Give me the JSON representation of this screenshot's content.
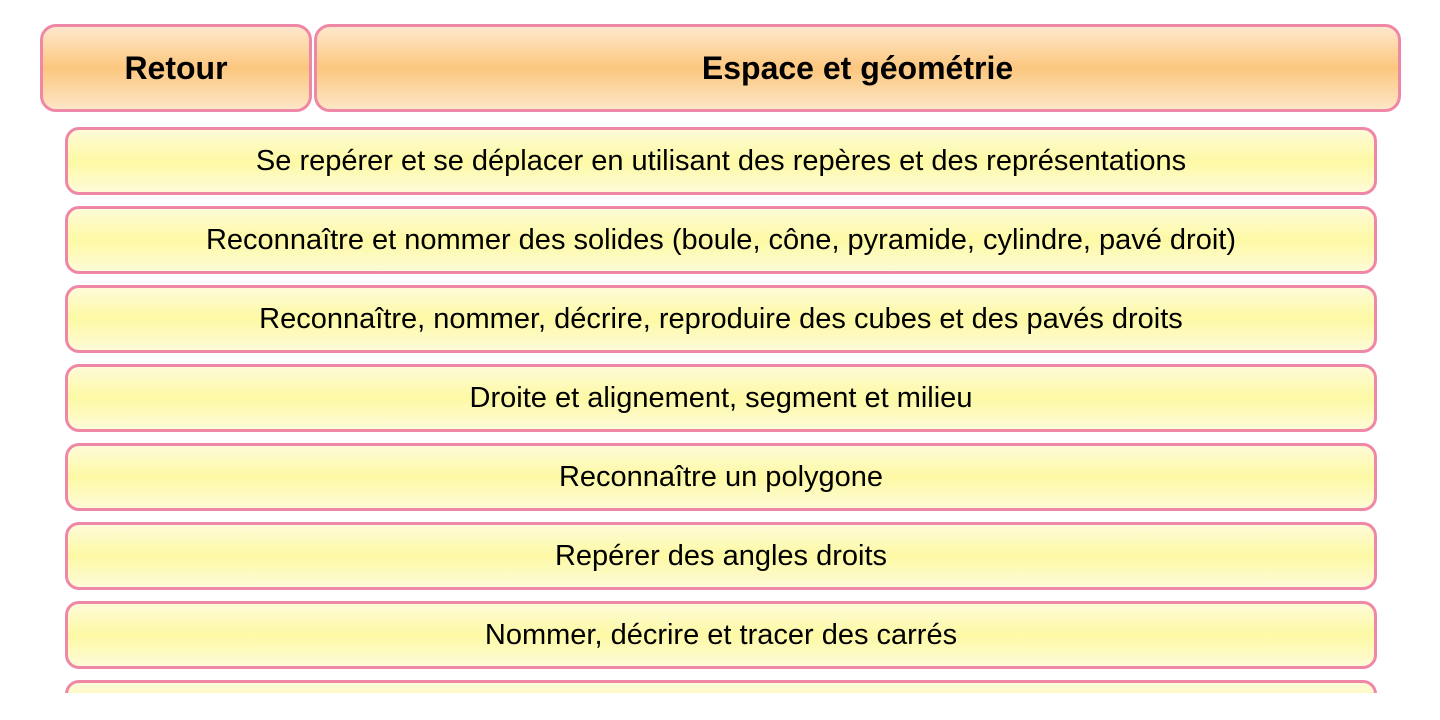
{
  "header": {
    "back_label": "Retour",
    "title": "Espace et géométrie"
  },
  "items": [
    "Se repérer et se déplacer en utilisant des repères et des représentations",
    "Reconnaître et nommer des solides (boule, cône, pyramide, cylindre, pavé droit)",
    "Reconnaître, nommer, décrire, reproduire des cubes et des pavés droits",
    "Droite et alignement, segment et milieu",
    "Reconnaître un polygone",
    "Repérer des angles droits",
    "Nommer, décrire et tracer des carrés",
    ""
  ],
  "colors": {
    "border": "#ef87a7",
    "header_fill": "#fcc77e",
    "item_fill": "#fdf9a4"
  }
}
